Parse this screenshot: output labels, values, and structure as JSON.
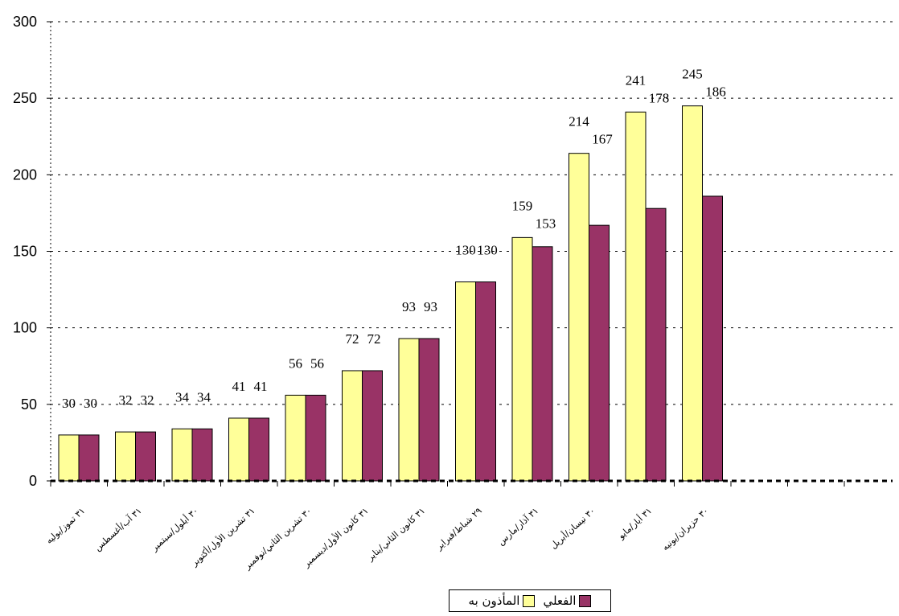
{
  "chart_data": {
    "type": "bar",
    "categories": [
      "٣١ تموز/يوليه",
      "٣١ آب/أغسطس",
      "٣٠ أيلول/سبتمبر",
      "٣١ تشرين الأول/أكتوبر",
      "٣٠ تشرين الثاني/نوفمبر",
      "٣١ كانون الأول/ديسمبر",
      "٣١ كانون الثاني/يناير",
      "٢٩ شباط/فبراير",
      "٣١ آذار/مارس",
      "٣٠ نيسان/أبريل",
      "٣١ أيار/مايو",
      "٣٠ حزيران/يونيه"
    ],
    "series": [
      {
        "name": "المأذون به",
        "color": "#FFFF99",
        "values": [
          30,
          32,
          34,
          41,
          56,
          72,
          93,
          130,
          159,
          214,
          241,
          245
        ],
        "labels": [
          "30",
          "32",
          "34",
          "41",
          "56",
          "72",
          "93",
          "130",
          "159",
          "214",
          "241",
          "245"
        ]
      },
      {
        "name": "الفعلي",
        "color": "#993366",
        "values": [
          30,
          32,
          34,
          41,
          56,
          72,
          93,
          130,
          153,
          167,
          178,
          186
        ],
        "labels": [
          "30",
          "32",
          "34",
          "41",
          "56",
          "72",
          "93",
          "130",
          "153",
          "167",
          "178",
          "186"
        ]
      }
    ],
    "ylim": [
      0,
      300
    ],
    "yticks": [
      0,
      50,
      100,
      150,
      200,
      250,
      300
    ],
    "grid": true,
    "legend_position": "bottom"
  }
}
